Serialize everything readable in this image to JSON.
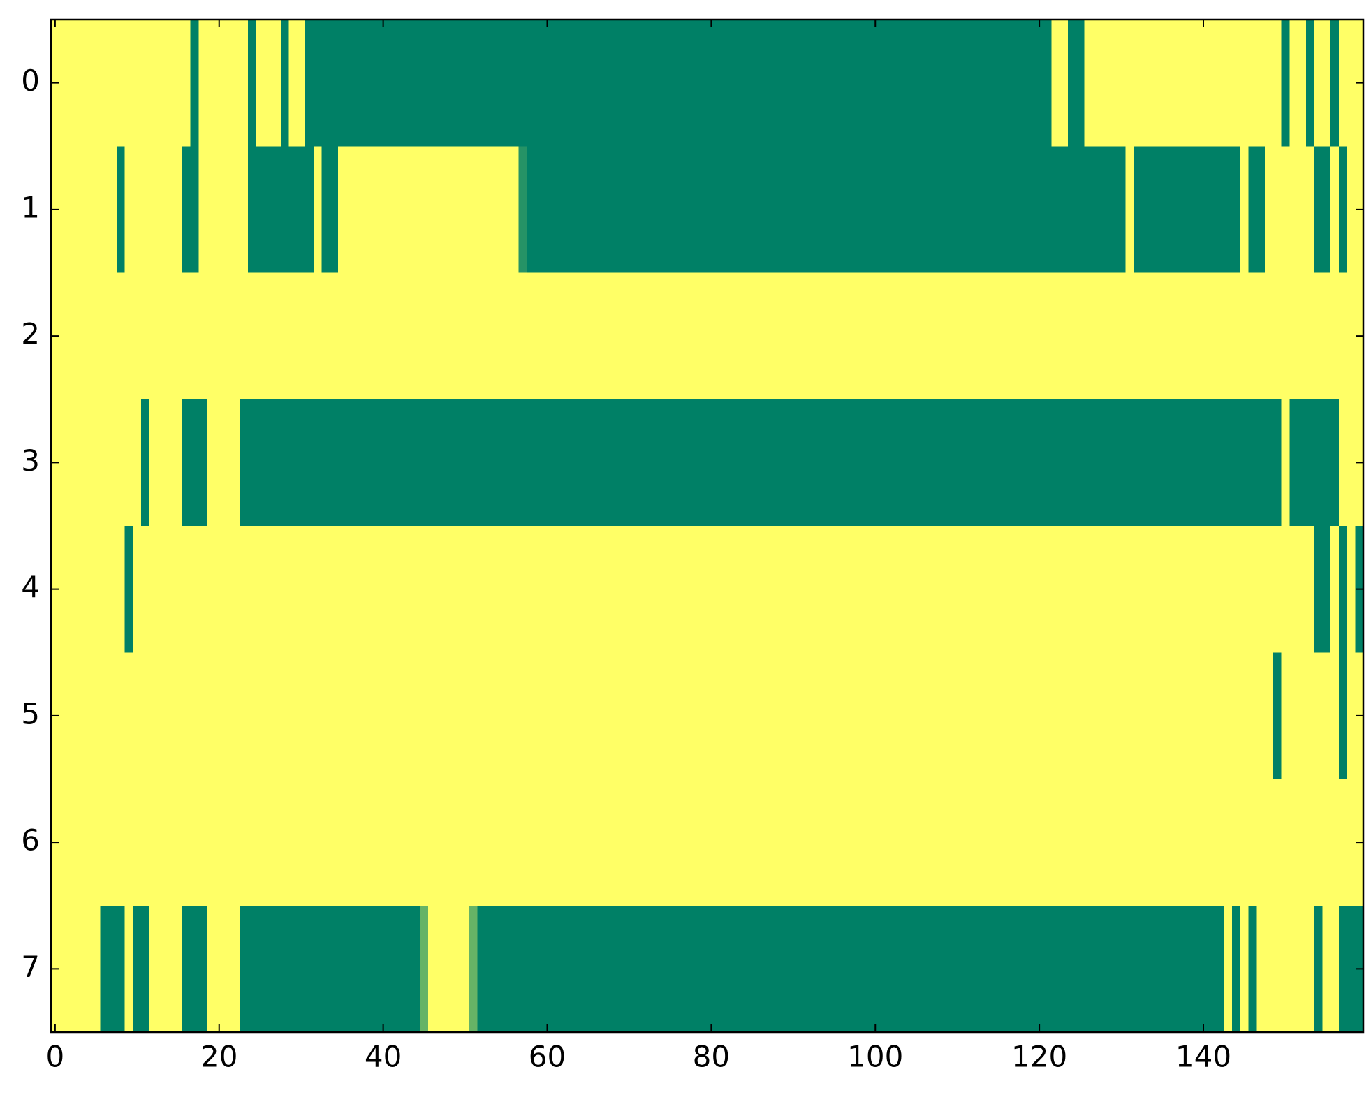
{
  "chart_data": {
    "type": "heatmap",
    "xlim": [
      -0.5,
      159.5
    ],
    "ylim": [
      7.5,
      -0.5
    ],
    "xticks": [
      0,
      20,
      40,
      60,
      80,
      100,
      120,
      140
    ],
    "yticks": [
      0,
      1,
      2,
      3,
      4,
      5,
      6,
      7
    ],
    "zlim": [
      0,
      1
    ],
    "colormap": [
      "#008066",
      "#ffff66"
    ],
    "z": [
      [
        1,
        1,
        1,
        1,
        1,
        1,
        1,
        1,
        1,
        1,
        1,
        1,
        1,
        1,
        1,
        1,
        1,
        0,
        1,
        1,
        1,
        1,
        1,
        1,
        0,
        1,
        1,
        1,
        0,
        1,
        1,
        0,
        0,
        0,
        0,
        0,
        0,
        0,
        0,
        0,
        0,
        0,
        0,
        0,
        0,
        0,
        0,
        0,
        0,
        0,
        0,
        0,
        0,
        0,
        0,
        0,
        0,
        0,
        0,
        0,
        0,
        0,
        0,
        0,
        0,
        0,
        0,
        0,
        0,
        0,
        0,
        0,
        0,
        0,
        0,
        0,
        0,
        0,
        0,
        0,
        0,
        0,
        0,
        0,
        0,
        0,
        0,
        0,
        0,
        0,
        0,
        0,
        0,
        0,
        0,
        0,
        0,
        0,
        0,
        0,
        0,
        0,
        0,
        0,
        0,
        0,
        0,
        0,
        0,
        0,
        0,
        0,
        0,
        0,
        0,
        0,
        0,
        0,
        0,
        0,
        0,
        0,
        1,
        1,
        0,
        0,
        1,
        1,
        1,
        1,
        1,
        1,
        1,
        1,
        1,
        1,
        1,
        1,
        1,
        1,
        1,
        1,
        1,
        1,
        1,
        1,
        1,
        1,
        1,
        1,
        0,
        1,
        1,
        0,
        1,
        1,
        0,
        1,
        1,
        1
      ],
      [
        1,
        1,
        1,
        1,
        1,
        1,
        1,
        1,
        0,
        1,
        1,
        1,
        1,
        1,
        1,
        1,
        0,
        0,
        1,
        1,
        1,
        1,
        1,
        1,
        0,
        0,
        0,
        0,
        0,
        0,
        0,
        0,
        1,
        0,
        0,
        1,
        1,
        1,
        1,
        1,
        1,
        1,
        1,
        1,
        1,
        1,
        1,
        1,
        1,
        1,
        1,
        1,
        1,
        1,
        1,
        1,
        1,
        0.15,
        0,
        0,
        0,
        0,
        0,
        0,
        0,
        0,
        0,
        0,
        0,
        0,
        0,
        0,
        0,
        0,
        0,
        0,
        0,
        0,
        0,
        0,
        0,
        0,
        0,
        0,
        0,
        0,
        0,
        0,
        0,
        0,
        0,
        0,
        0,
        0,
        0,
        0,
        0,
        0,
        0,
        0,
        0,
        0,
        0,
        0,
        0,
        0,
        0,
        0,
        0,
        0,
        0,
        0,
        0,
        0,
        0,
        0,
        0,
        0,
        0,
        0,
        0,
        0,
        0,
        0,
        0,
        0,
        0,
        0,
        0,
        0,
        0,
        1,
        0,
        0,
        0,
        0,
        0,
        0,
        0,
        0,
        0,
        0,
        0,
        0,
        0,
        1,
        0,
        0,
        1,
        1,
        1,
        1,
        1,
        1,
        0,
        0,
        1,
        0,
        1,
        1
      ],
      [
        1,
        1,
        1,
        1,
        1,
        1,
        1,
        1,
        1,
        1,
        1,
        1,
        1,
        1,
        1,
        1,
        1,
        1,
        1,
        1,
        1,
        1,
        1,
        1,
        1,
        1,
        1,
        1,
        1,
        1,
        1,
        1,
        1,
        1,
        1,
        1,
        1,
        1,
        1,
        1,
        1,
        1,
        1,
        1,
        1,
        1,
        1,
        1,
        1,
        1,
        1,
        1,
        1,
        1,
        1,
        1,
        1,
        1,
        1,
        1,
        1,
        1,
        1,
        1,
        1,
        1,
        1,
        1,
        1,
        1,
        1,
        1,
        1,
        1,
        1,
        1,
        1,
        1,
        1,
        1,
        1,
        1,
        1,
        1,
        1,
        1,
        1,
        1,
        1,
        1,
        1,
        1,
        1,
        1,
        1,
        1,
        1,
        1,
        1,
        1,
        1,
        1,
        1,
        1,
        1,
        1,
        1,
        1,
        1,
        1,
        1,
        1,
        1,
        1,
        1,
        1,
        1,
        1,
        1,
        1,
        1,
        1,
        1,
        1,
        1,
        1,
        1,
        1,
        1,
        1,
        1,
        1,
        1,
        1,
        1,
        1,
        1,
        1,
        1,
        1,
        1,
        1,
        1,
        1,
        1,
        1,
        1,
        1,
        1,
        1,
        1,
        1,
        1,
        1,
        1,
        1,
        1,
        1,
        1,
        1
      ],
      [
        1,
        1,
        1,
        1,
        1,
        1,
        1,
        1,
        1,
        1,
        1,
        0,
        1,
        1,
        1,
        1,
        0,
        0,
        0,
        1,
        1,
        1,
        1,
        0,
        0,
        0,
        0,
        0,
        0,
        0,
        0,
        0,
        0,
        0,
        0,
        0,
        0,
        0,
        0,
        0,
        0,
        0,
        0,
        0,
        0,
        0,
        0,
        0,
        0,
        0,
        0,
        0,
        0,
        0,
        0,
        0,
        0,
        0,
        0,
        0,
        0,
        0,
        0,
        0,
        0,
        0,
        0,
        0,
        0,
        0,
        0,
        0,
        0,
        0,
        0,
        0,
        0,
        0,
        0,
        0,
        0,
        0,
        0,
        0,
        0,
        0,
        0,
        0,
        0,
        0,
        0,
        0,
        0,
        0,
        0,
        0,
        0,
        0,
        0,
        0,
        0,
        0,
        0,
        0,
        0,
        0,
        0,
        0,
        0,
        0,
        0,
        0,
        0,
        0,
        0,
        0,
        0,
        0,
        0,
        0,
        0,
        0,
        0,
        0,
        0,
        0,
        0,
        0,
        0,
        0,
        0,
        0,
        0,
        0,
        0,
        0,
        0,
        0,
        0,
        0,
        0,
        0,
        0,
        0,
        0,
        0,
        0,
        0,
        0,
        0,
        1,
        0,
        0,
        0,
        0,
        0,
        0,
        1,
        1,
        1
      ],
      [
        1,
        1,
        1,
        1,
        1,
        1,
        1,
        1,
        1,
        0,
        1,
        1,
        1,
        1,
        1,
        1,
        1,
        1,
        1,
        1,
        1,
        1,
        1,
        1,
        1,
        1,
        1,
        1,
        1,
        1,
        1,
        1,
        1,
        1,
        1,
        1,
        1,
        1,
        1,
        1,
        1,
        1,
        1,
        1,
        1,
        1,
        1,
        1,
        1,
        1,
        1,
        1,
        1,
        1,
        1,
        1,
        1,
        1,
        1,
        1,
        1,
        1,
        1,
        1,
        1,
        1,
        1,
        1,
        1,
        1,
        1,
        1,
        1,
        1,
        1,
        1,
        1,
        1,
        1,
        1,
        1,
        1,
        1,
        1,
        1,
        1,
        1,
        1,
        1,
        1,
        1,
        1,
        1,
        1,
        1,
        1,
        1,
        1,
        1,
        1,
        1,
        1,
        1,
        1,
        1,
        1,
        1,
        1,
        1,
        1,
        1,
        1,
        1,
        1,
        1,
        1,
        1,
        1,
        1,
        1,
        1,
        1,
        1,
        1,
        1,
        1,
        1,
        1,
        1,
        1,
        1,
        1,
        1,
        1,
        1,
        1,
        1,
        1,
        1,
        1,
        1,
        1,
        1,
        1,
        1,
        1,
        1,
        1,
        1,
        1,
        1,
        1,
        1,
        1,
        0,
        0,
        1,
        0,
        1,
        0
      ],
      [
        1,
        1,
        1,
        1,
        1,
        1,
        1,
        1,
        1,
        1,
        1,
        1,
        1,
        1,
        1,
        1,
        1,
        1,
        1,
        1,
        1,
        1,
        1,
        1,
        1,
        1,
        1,
        1,
        1,
        1,
        1,
        1,
        1,
        1,
        1,
        1,
        1,
        1,
        1,
        1,
        1,
        1,
        1,
        1,
        1,
        1,
        1,
        1,
        1,
        1,
        1,
        1,
        1,
        1,
        1,
        1,
        1,
        1,
        1,
        1,
        1,
        1,
        1,
        1,
        1,
        1,
        1,
        1,
        1,
        1,
        1,
        1,
        1,
        1,
        1,
        1,
        1,
        1,
        1,
        1,
        1,
        1,
        1,
        1,
        1,
        1,
        1,
        1,
        1,
        1,
        1,
        1,
        1,
        1,
        1,
        1,
        1,
        1,
        1,
        1,
        1,
        1,
        1,
        1,
        1,
        1,
        1,
        1,
        1,
        1,
        1,
        1,
        1,
        1,
        1,
        1,
        1,
        1,
        1,
        1,
        1,
        1,
        1,
        1,
        1,
        1,
        1,
        1,
        1,
        1,
        1,
        1,
        1,
        1,
        1,
        1,
        1,
        1,
        1,
        1,
        1,
        1,
        1,
        1,
        1,
        1,
        1,
        1,
        1,
        0,
        1,
        1,
        1,
        1,
        1,
        1,
        1,
        0,
        1,
        1
      ],
      [
        1,
        1,
        1,
        1,
        1,
        1,
        1,
        1,
        1,
        1,
        1,
        1,
        1,
        1,
        1,
        1,
        1,
        1,
        1,
        1,
        1,
        1,
        1,
        1,
        1,
        1,
        1,
        1,
        1,
        1,
        1,
        1,
        1,
        1,
        1,
        1,
        1,
        1,
        1,
        1,
        1,
        1,
        1,
        1,
        1,
        1,
        1,
        1,
        1,
        1,
        1,
        1,
        1,
        1,
        1,
        1,
        1,
        1,
        1,
        1,
        1,
        1,
        1,
        1,
        1,
        1,
        1,
        1,
        1,
        1,
        1,
        1,
        1,
        1,
        1,
        1,
        1,
        1,
        1,
        1,
        1,
        1,
        1,
        1,
        1,
        1,
        1,
        1,
        1,
        1,
        1,
        1,
        1,
        1,
        1,
        1,
        1,
        1,
        1,
        1,
        1,
        1,
        1,
        1,
        1,
        1,
        1,
        1,
        1,
        1,
        1,
        1,
        1,
        1,
        1,
        1,
        1,
        1,
        1,
        1,
        1,
        1,
        1,
        1,
        1,
        1,
        1,
        1,
        1,
        1,
        1,
        1,
        1,
        1,
        1,
        1,
        1,
        1,
        1,
        1,
        1,
        1,
        1,
        1,
        1,
        1,
        1,
        1,
        1,
        1,
        1,
        1,
        1,
        1,
        1,
        1,
        1,
        1,
        1,
        1
      ],
      [
        1,
        1,
        1,
        1,
        1,
        1,
        0,
        0,
        0,
        1,
        0,
        0,
        1,
        1,
        1,
        1,
        0,
        0,
        0,
        1,
        1,
        1,
        1,
        0,
        0,
        0,
        0,
        0,
        0,
        0,
        0,
        0,
        0,
        0,
        0,
        0,
        0,
        0,
        0,
        0,
        0,
        0,
        0,
        0,
        0,
        0.4,
        1,
        1,
        1,
        1,
        1,
        0.4,
        0,
        0,
        0,
        0,
        0,
        0,
        0,
        0,
        0,
        0,
        0,
        0,
        0,
        0,
        0,
        0,
        0,
        0,
        0,
        0,
        0,
        0,
        0,
        0,
        0,
        0,
        0,
        0,
        0,
        0,
        0,
        0,
        0,
        0,
        0,
        0,
        0,
        0,
        0,
        0,
        0,
        0,
        0,
        0,
        0,
        0,
        0,
        0,
        0,
        0,
        0,
        0,
        0,
        0,
        0,
        0,
        0,
        0,
        0,
        0,
        0,
        0,
        0,
        0,
        0,
        0,
        0,
        0,
        0,
        0,
        0,
        0,
        0,
        0,
        0,
        0,
        0,
        0,
        0,
        0,
        0,
        0,
        0,
        0,
        0,
        0,
        0,
        0,
        0,
        0,
        0,
        1,
        0,
        1,
        0,
        1,
        1,
        1,
        1,
        1,
        1,
        1,
        0,
        1,
        1,
        0,
        0,
        0
      ]
    ]
  }
}
